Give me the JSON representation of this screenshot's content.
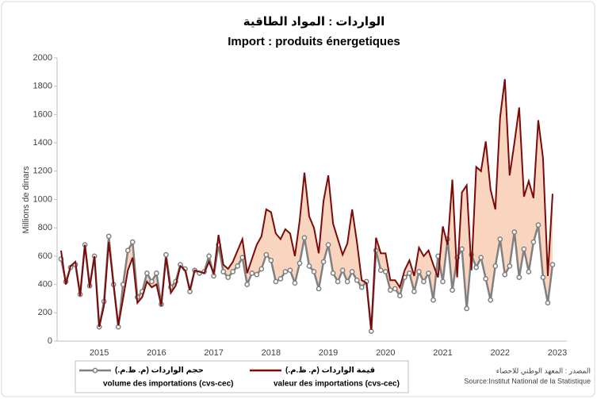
{
  "chart_data": {
    "type": "line",
    "title": "الواردات : المواد الطاقية",
    "subtitle": "Import : produits énergetiques",
    "y_label": "Millions de dinars",
    "source_ar": "المصدر : المعهد الوطني للاحصاء",
    "source": "Source:Institut National de la Statistique",
    "categories": [
      null,
      null,
      null,
      null,
      null,
      null,
      null,
      null,
      "2015",
      null,
      null,
      null,
      null,
      null,
      null,
      null,
      null,
      null,
      null,
      null,
      "2016",
      null,
      null,
      null,
      null,
      null,
      null,
      null,
      null,
      null,
      null,
      null,
      "2017",
      null,
      null,
      null,
      null,
      null,
      null,
      null,
      null,
      null,
      null,
      null,
      "2018",
      null,
      null,
      null,
      null,
      null,
      null,
      null,
      null,
      null,
      null,
      null,
      "2019",
      null,
      null,
      null,
      null,
      null,
      null,
      null,
      null,
      null,
      null,
      null,
      "2020",
      null,
      null,
      null,
      null,
      null,
      null,
      null,
      null,
      null,
      null,
      null,
      "2021",
      null,
      null,
      null,
      null,
      null,
      null,
      null,
      null,
      null,
      null,
      null,
      "2022",
      null,
      null,
      null,
      null,
      null,
      null,
      null,
      null,
      null,
      null,
      null,
      "2023"
    ],
    "series": [
      {
        "name": "volume des importations (cvs-cec)",
        "name_ar": "حجم الواردات (م. ظ.م.)",
        "color": "#808080",
        "markers": true,
        "values": [
          580,
          420,
          520,
          540,
          330,
          680,
          390,
          600,
          100,
          280,
          740,
          400,
          100,
          400,
          640,
          700,
          310,
          350,
          480,
          420,
          480,
          260,
          610,
          380,
          420,
          540,
          510,
          350,
          500,
          480,
          490,
          600,
          460,
          680,
          490,
          450,
          490,
          530,
          590,
          400,
          480,
          470,
          510,
          610,
          570,
          420,
          440,
          490,
          500,
          410,
          550,
          730,
          530,
          490,
          370,
          560,
          680,
          480,
          420,
          500,
          420,
          490,
          430,
          380,
          420,
          70,
          640,
          500,
          490,
          360,
          370,
          320,
          450,
          480,
          350,
          490,
          420,
          480,
          290,
          600,
          420,
          720,
          360,
          590,
          650,
          230,
          610,
          520,
          590,
          440,
          290,
          530,
          720,
          470,
          530,
          770,
          450,
          650,
          490,
          700,
          820,
          450,
          270,
          540,
          null
        ]
      },
      {
        "name": "valeur des importations (cvs-cec)",
        "name_ar": "قيمة الواردات (م. ظ.م.)",
        "color": "#7b0a0a",
        "markers": false,
        "values": [
          640,
          400,
          530,
          560,
          320,
          680,
          380,
          600,
          100,
          250,
          700,
          400,
          110,
          300,
          500,
          590,
          270,
          310,
          420,
          380,
          400,
          250,
          590,
          340,
          390,
          530,
          500,
          360,
          500,
          490,
          480,
          560,
          480,
          750,
          540,
          510,
          560,
          640,
          720,
          480,
          580,
          680,
          740,
          930,
          910,
          760,
          720,
          790,
          760,
          600,
          850,
          1190,
          880,
          800,
          620,
          990,
          1170,
          830,
          720,
          610,
          690,
          930,
          700,
          430,
          410,
          80,
          730,
          620,
          620,
          430,
          430,
          380,
          500,
          570,
          460,
          660,
          600,
          640,
          540,
          450,
          810,
          680,
          1140,
          450,
          1050,
          1100,
          500,
          1230,
          1200,
          1410,
          1070,
          930,
          1580,
          1850,
          1170,
          1400,
          1650,
          1020,
          1130,
          1010,
          1560,
          1290,
          460,
          1040,
          null
        ]
      }
    ],
    "fill_between": "#f9d5bf",
    "ylim": [
      0,
      2000
    ],
    "yticks": [
      0,
      200,
      400,
      600,
      800,
      1000,
      1200,
      1400,
      1600,
      1800,
      2000
    ],
    "grid": false
  }
}
